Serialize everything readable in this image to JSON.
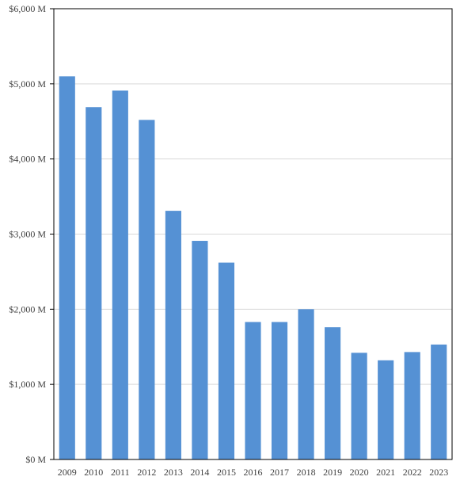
{
  "chart_data": {
    "type": "bar",
    "categories": [
      "2009",
      "2010",
      "2011",
      "2012",
      "2013",
      "2014",
      "2015",
      "2016",
      "2017",
      "2018",
      "2019",
      "2020",
      "2021",
      "2022",
      "2023"
    ],
    "values": [
      5100,
      4690,
      4910,
      4520,
      3310,
      2910,
      2620,
      1830,
      1830,
      2000,
      1760,
      1420,
      1320,
      1430,
      1530
    ],
    "y_ticks": [
      "$0 M",
      "$1,000 M",
      "$2,000 M",
      "$3,000 M",
      "$4,000 M",
      "$5,000 M",
      "$6,000 M"
    ],
    "ylim": [
      0,
      6000
    ],
    "title": "",
    "xlabel": "",
    "ylabel": "",
    "grid": true,
    "bar_color": "#5591d4",
    "grid_color": "#d9d9d9"
  }
}
